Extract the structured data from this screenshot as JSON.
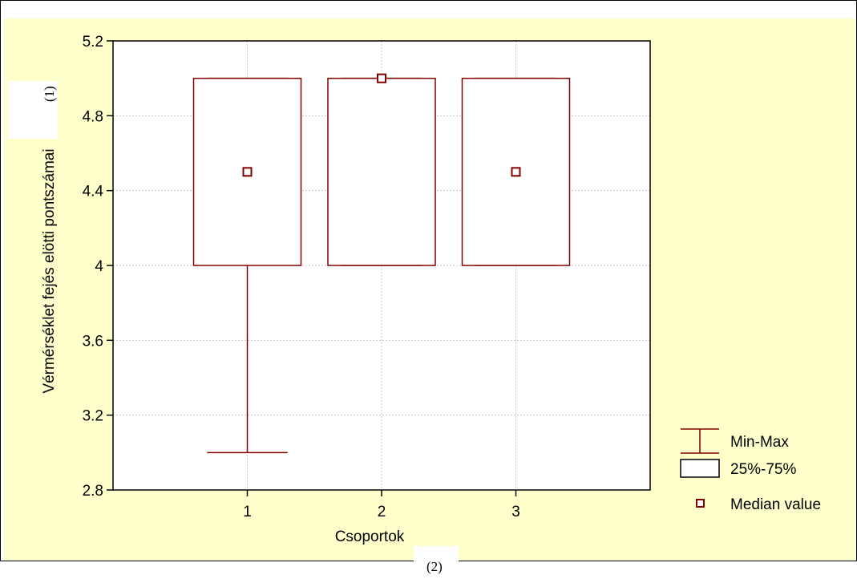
{
  "chart_data": {
    "type": "boxplot",
    "categories": [
      "1",
      "2",
      "3"
    ],
    "boxes": [
      {
        "category": "1",
        "min": 3.0,
        "q1": 4.0,
        "median": 4.5,
        "q3": 5.0,
        "max": 5.0
      },
      {
        "category": "2",
        "min": 4.0,
        "q1": 4.0,
        "median": 5.0,
        "q3": 5.0,
        "max": 5.0
      },
      {
        "category": "3",
        "min": 4.0,
        "q1": 4.0,
        "median": 4.5,
        "q3": 5.0,
        "max": 5.0
      }
    ],
    "xlabel": "Csoportok",
    "ylabel": "Vérmérséklet fejés elötti pontszámai",
    "ylim": [
      2.8,
      5.2
    ],
    "yticks": [
      "2.8",
      "3.2",
      "3.6",
      "4",
      "4.4",
      "4.8",
      "5.2"
    ],
    "xlim": [
      0,
      4
    ],
    "grid": true,
    "legend": {
      "placement": "right",
      "entries": [
        "Min-Max",
        "25%-75%",
        "Median value"
      ]
    },
    "colors": {
      "box": "#800000",
      "background": "#ffffcc",
      "plot_area": "#ffffff"
    }
  },
  "annotations": {
    "y_note": "(1)",
    "x_note": "(2)"
  }
}
